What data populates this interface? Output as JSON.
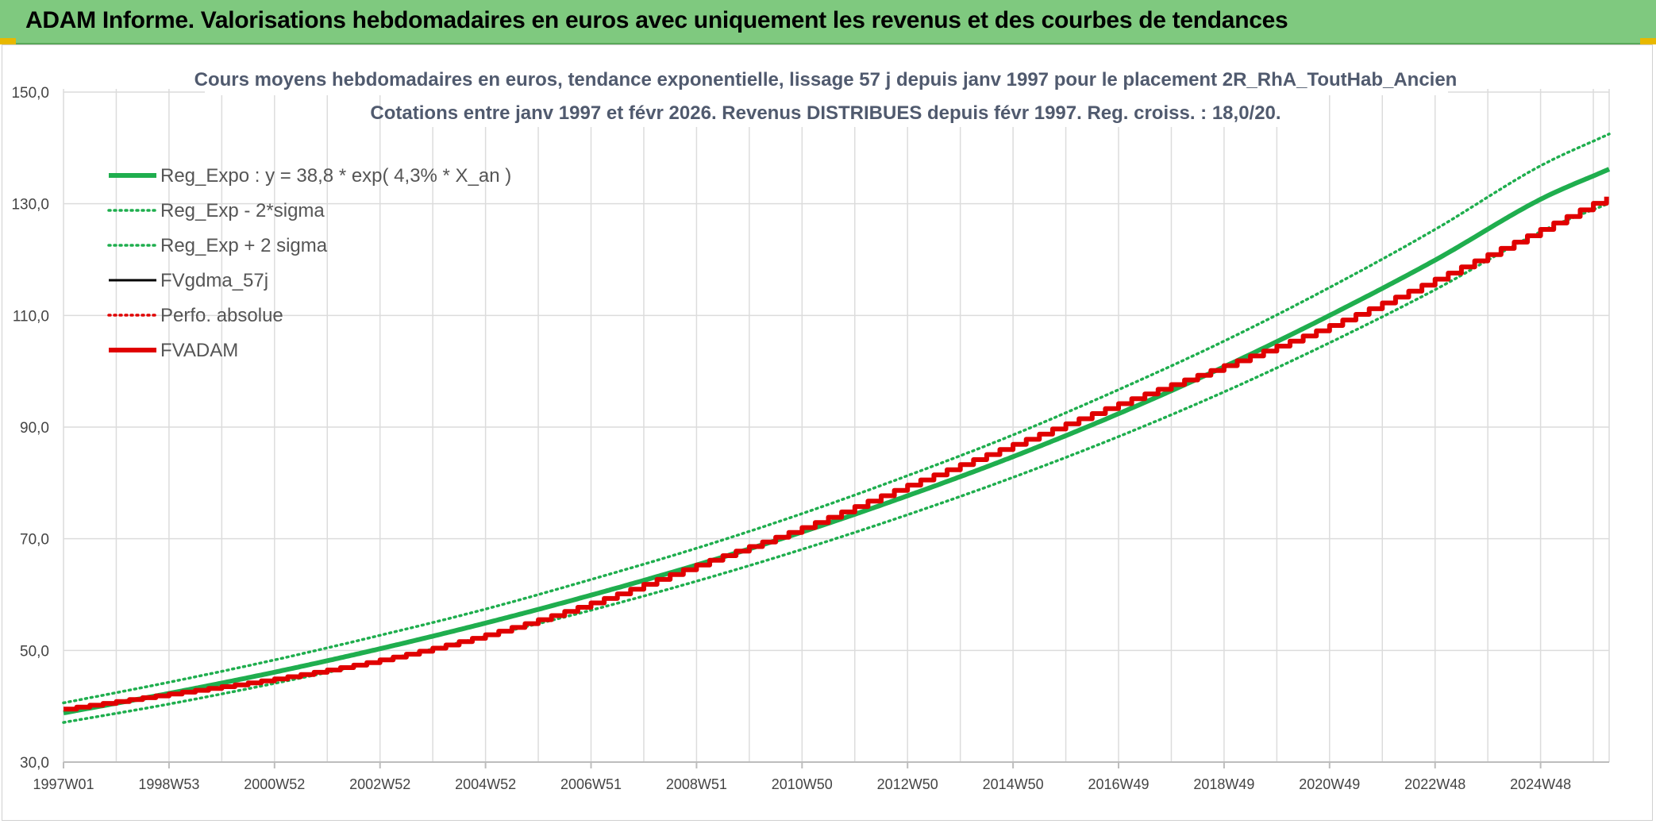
{
  "banner": {
    "title": "ADAM Informe. Valorisations hebdomadaires en euros avec uniquement les revenus et des courbes de tendances"
  },
  "colors": {
    "banner_bg": "#7fc97f",
    "trend_green": "#1fae4e",
    "adam_red": "#e00000",
    "black": "#000000",
    "grid": "#dcdcdc"
  },
  "chart_data": {
    "type": "line",
    "title_line1": "Cours moyens hebdomadaires en euros, tendance exponentielle, lissage 57 j depuis janv 1997 pour le placement 2R_RhA_ToutHab_Ancien",
    "title_line2": "Cotations entre janv 1997 et févr 2026. Revenus DISTRIBUES depuis févr 1997. Reg. croiss. : 18,0/20.",
    "ylim": [
      30,
      150
    ],
    "y_ticks": [
      "150,0",
      "130,0",
      "110,0",
      "90,0",
      "70,0",
      "50,0",
      "30,0"
    ],
    "y_tick_values": [
      150,
      130,
      110,
      90,
      70,
      50,
      30
    ],
    "x_range_years": [
      1997.0,
      2026.3
    ],
    "x_ticks": [
      "1997W01",
      "1998W53",
      "2000W52",
      "2002W52",
      "2004W52",
      "2006W51",
      "2008W51",
      "2010W50",
      "2012W50",
      "2014W50",
      "2016W49",
      "2018W49",
      "2020W49",
      "2022W48",
      "2024W48"
    ],
    "x_tick_years": [
      1997,
      1999,
      2001,
      2003,
      2005,
      2007,
      2009,
      2011,
      2013,
      2015,
      2017,
      2019,
      2021,
      2023,
      2025
    ],
    "grid": true,
    "legend_position": "top-left",
    "legend": [
      {
        "label": "Reg_Expo : y = 38,8 * exp( 4,3% *  X_an )",
        "color": "#1fae4e",
        "style": "solid-thick"
      },
      {
        "label": "Reg_Exp - 2*sigma",
        "color": "#1fae4e",
        "style": "dotted"
      },
      {
        "label": "Reg_Exp + 2 sigma",
        "color": "#1fae4e",
        "style": "dotted"
      },
      {
        "label": "FVgdma_57j",
        "color": "#000000",
        "style": "solid"
      },
      {
        "label": "Perfo. absolue",
        "color": "#e00000",
        "style": "dotted"
      },
      {
        "label": "FVADAM",
        "color": "#e00000",
        "style": "solid-thick"
      }
    ],
    "series": [
      {
        "name": "Reg_Expo : y = 38,8 * exp( 4,3% *  X_an )",
        "x": [
          1997,
          1999,
          2001,
          2003,
          2005,
          2007,
          2009,
          2011,
          2013,
          2015,
          2017,
          2019,
          2021,
          2023,
          2025,
          2026.3
        ],
        "values": [
          38.8,
          42.3,
          46.1,
          50.3,
          54.9,
          59.9,
          65.3,
          71.2,
          77.7,
          84.7,
          92.4,
          100.8,
          110.0,
          119.9,
          130.8,
          136.2
        ]
      },
      {
        "name": "Reg_Exp - 2*sigma",
        "x": [
          1997,
          1999,
          2001,
          2003,
          2005,
          2007,
          2009,
          2011,
          2013,
          2015,
          2017,
          2019,
          2021,
          2023,
          2025,
          2026.3
        ],
        "values": [
          37.1,
          40.4,
          44.1,
          48.1,
          52.5,
          57.2,
          62.4,
          68.1,
          74.3,
          81.0,
          88.3,
          96.3,
          105.1,
          114.6,
          125.0,
          130.1
        ]
      },
      {
        "name": "Reg_Exp + 2 sigma",
        "x": [
          1997,
          1999,
          2001,
          2003,
          2005,
          2007,
          2009,
          2011,
          2013,
          2015,
          2017,
          2019,
          2021,
          2023,
          2025,
          2026.3
        ],
        "values": [
          40.6,
          44.3,
          48.3,
          52.7,
          57.4,
          62.7,
          68.3,
          74.5,
          81.3,
          88.6,
          96.7,
          105.4,
          115.0,
          125.4,
          136.8,
          142.5
        ]
      },
      {
        "name": "FVADAM",
        "x": [
          1997,
          1999,
          2001,
          2003,
          2005,
          2007,
          2009,
          2011,
          2013,
          2015,
          2017,
          2019,
          2021,
          2023,
          2025,
          2026.3
        ],
        "values": [
          39.5,
          42.2,
          44.9,
          48.3,
          52.8,
          58.5,
          65.3,
          72.0,
          79.6,
          86.9,
          94.2,
          101.0,
          108.2,
          116.5,
          125.4,
          131.5
        ]
      }
    ]
  }
}
